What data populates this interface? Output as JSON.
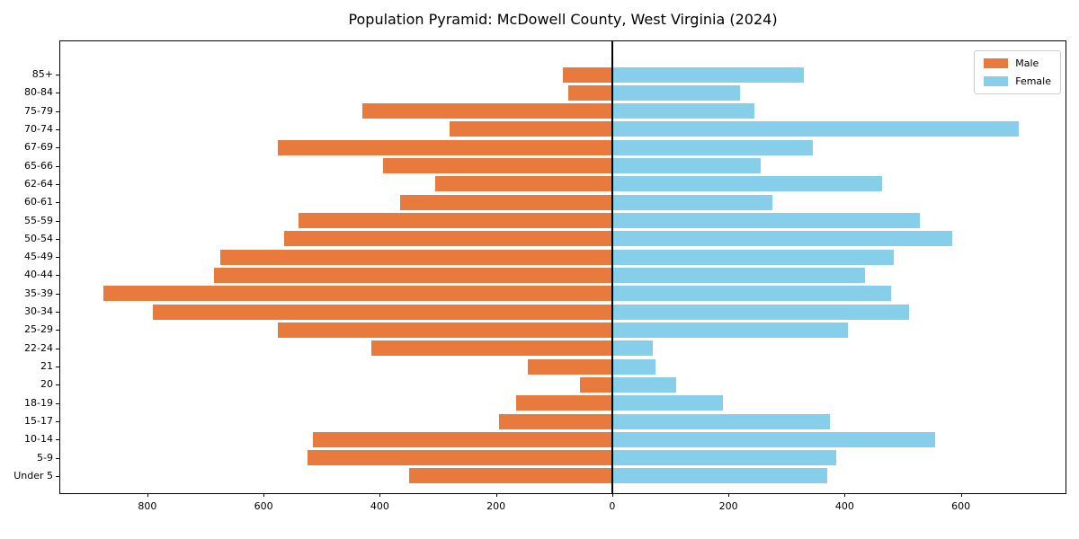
{
  "title": "Population Pyramid: McDowell County, West Virginia (2024)",
  "legend": {
    "male_label": "Male",
    "female_label": "Female"
  },
  "colors": {
    "male": "#e87a3e",
    "female": "#87ceeb",
    "axis": "#000000",
    "background": "#ffffff",
    "legend_border": "#cccccc"
  },
  "chart_data": {
    "type": "bar",
    "subtype": "population-pyramid-horizontal",
    "title": "Population Pyramid: McDowell County, West Virginia (2024)",
    "categories": [
      "85+",
      "80-84",
      "75-79",
      "70-74",
      "67-69",
      "65-66",
      "62-64",
      "60-61",
      "55-59",
      "50-54",
      "45-49",
      "40-44",
      "35-39",
      "30-34",
      "25-29",
      "22-24",
      "21",
      "20",
      "18-19",
      "15-17",
      "10-14",
      "5-9",
      "Under 5"
    ],
    "categories_order": "top-to-bottom",
    "series": [
      {
        "name": "Male",
        "side": "left",
        "color": "#e87a3e",
        "values": [
          85,
          75,
          430,
          280,
          575,
          395,
          305,
          365,
          540,
          565,
          675,
          685,
          875,
          790,
          575,
          415,
          145,
          55,
          165,
          195,
          515,
          525,
          350
        ]
      },
      {
        "name": "Female",
        "side": "right",
        "color": "#87ceeb",
        "values": [
          330,
          220,
          245,
          700,
          345,
          255,
          465,
          275,
          530,
          585,
          485,
          435,
          480,
          510,
          405,
          70,
          75,
          110,
          190,
          375,
          555,
          385,
          370
        ]
      }
    ],
    "xlabel": "",
    "ylabel": "",
    "xlim": [
      -950,
      780
    ],
    "x_ticks": [
      {
        "value": -800,
        "label": "800"
      },
      {
        "value": -600,
        "label": "600"
      },
      {
        "value": -400,
        "label": "400"
      },
      {
        "value": -200,
        "label": "200"
      },
      {
        "value": 0,
        "label": "0"
      },
      {
        "value": 200,
        "label": "200"
      },
      {
        "value": 400,
        "label": "400"
      },
      {
        "value": 600,
        "label": "600"
      }
    ],
    "grid": false,
    "zero_axis_line": true,
    "legend_entries": [
      "Male",
      "Female"
    ],
    "legend_position": "upper right"
  }
}
